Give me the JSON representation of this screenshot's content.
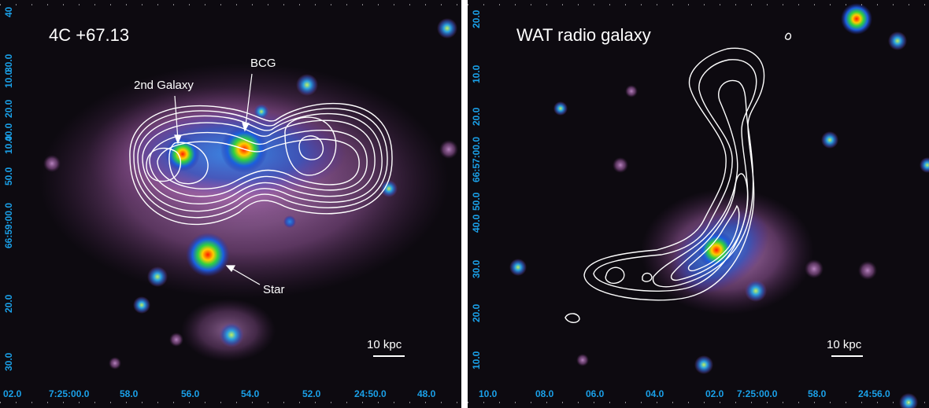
{
  "left_panel": {
    "title": "4C +67.13",
    "labels": {
      "second_galaxy": "2nd Galaxy",
      "bcg": "BCG",
      "star": "Star"
    },
    "scale_bar": "10 kpc",
    "y_ticks": [
      "30.0",
      "20.0",
      "10.0",
      "66:59:00.0",
      "50.0",
      "40.0",
      "30.0",
      "20.0",
      "10.0",
      "40"
    ],
    "x_ticks": [
      "02.0",
      "7:25:00.0",
      "58.0",
      "56.0",
      "54.0",
      "52.0",
      "24:50.0",
      "48.0"
    ]
  },
  "right_panel": {
    "title": "WAT radio galaxy",
    "scale_bar": "10 kpc",
    "y_ticks": [
      "20.0",
      "10.0",
      "66:57:00.0",
      "50.0",
      "40.0",
      "30.0",
      "20.0",
      "10.0",
      "20.0"
    ],
    "x_ticks": [
      "10.0",
      "08.0",
      "06.0",
      "04.0",
      "02.0",
      "7:25:00.0",
      "58.0",
      "24:56.0"
    ]
  },
  "colors": {
    "tick_label": "#1aa0e8",
    "contour": "#ffffff",
    "background": "#0d0a10",
    "halo": "#b070b0"
  }
}
